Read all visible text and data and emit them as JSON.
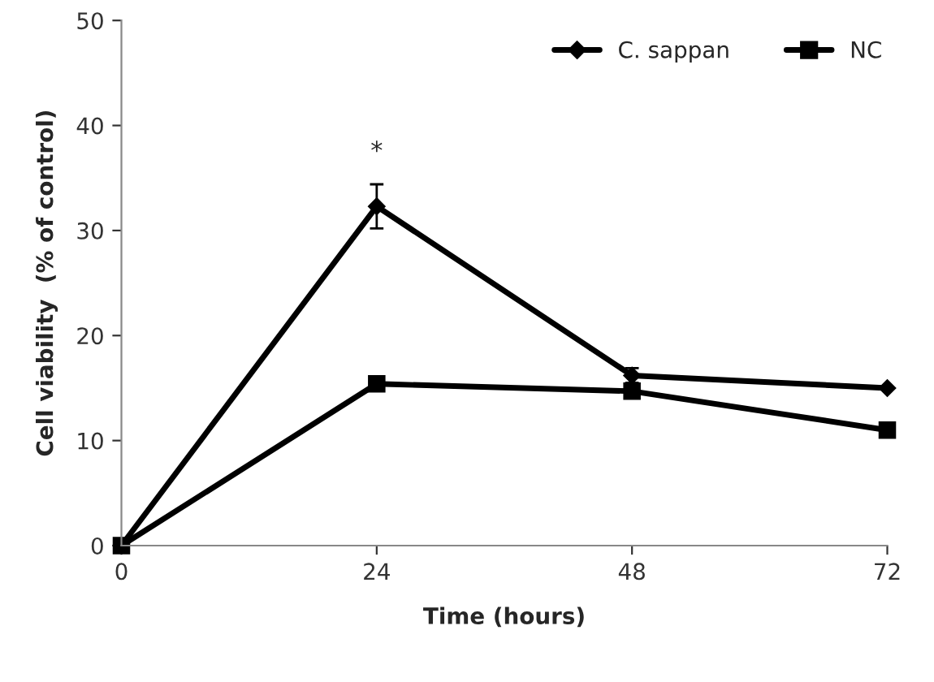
{
  "chart_data": {
    "type": "line",
    "xlabel": "Time (hours)",
    "ylabel": "Cell viability  (% of control)",
    "x": [
      0,
      24,
      48,
      72
    ],
    "series": [
      {
        "name": "C. sappan",
        "color": "#000000",
        "marker": "diamond",
        "values": [
          0,
          32.3,
          16.2,
          15.0
        ],
        "errors": [
          null,
          2.1,
          0.7,
          null
        ]
      },
      {
        "name": "NC",
        "color": "#000000",
        "marker": "square",
        "values": [
          0,
          15.4,
          14.7,
          11.0
        ]
      }
    ],
    "annotations": [
      {
        "text": "*",
        "x": 24,
        "y": 32.3
      }
    ],
    "xlim": [
      0,
      72
    ],
    "ylim": [
      0,
      50
    ],
    "xticks": [
      0,
      24,
      48,
      72
    ],
    "yticks": [
      0,
      10,
      20,
      30,
      40,
      50
    ],
    "legend": "top right",
    "grid": false,
    "line_style": "solid"
  }
}
